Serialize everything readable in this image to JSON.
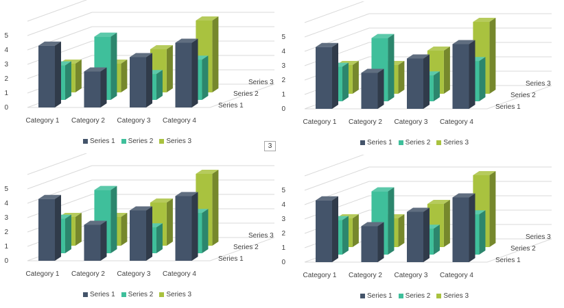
{
  "chart_data": [
    {
      "type": "bar",
      "title": "",
      "xlabel": "",
      "ylabel": "",
      "ylim": [
        0,
        5
      ],
      "yticks": [
        "0",
        "1",
        "2",
        "3",
        "4",
        "5"
      ],
      "categories": [
        "Category 1",
        "Category 2",
        "Category 3",
        "Category 4"
      ],
      "series": [
        {
          "name": "Series 1",
          "values": [
            4.3,
            2.5,
            3.5,
            4.5
          ],
          "color": "#44546a"
        },
        {
          "name": "Series 2",
          "values": [
            2.4,
            4.4,
            1.8,
            2.8
          ],
          "color": "#3fbf9b"
        },
        {
          "name": "Series 3",
          "values": [
            2,
            2,
            3,
            5
          ],
          "color": "#a9c23f"
        }
      ],
      "grid": true,
      "legend": "bottom"
    },
    {
      "type": "bar",
      "title": "",
      "xlabel": "",
      "ylabel": "",
      "ylim": [
        0,
        5
      ],
      "yticks": [
        "0",
        "1",
        "2",
        "3",
        "4",
        "5"
      ],
      "categories": [
        "Category 1",
        "Category 2",
        "Category 3",
        "Category 4"
      ],
      "series": [
        {
          "name": "Series 1",
          "values": [
            4.3,
            2.5,
            3.5,
            4.5
          ],
          "color": "#44546a"
        },
        {
          "name": "Series 2",
          "values": [
            2.4,
            4.4,
            1.8,
            2.8
          ],
          "color": "#3fbf9b"
        },
        {
          "name": "Series 3",
          "values": [
            2,
            2,
            3,
            5
          ],
          "color": "#a9c23f"
        }
      ],
      "grid": true,
      "legend": "bottom"
    },
    {
      "type": "bar",
      "title": "",
      "xlabel": "",
      "ylabel": "",
      "ylim": [
        0,
        5
      ],
      "yticks": [
        "0",
        "1",
        "2",
        "3",
        "4",
        "5"
      ],
      "categories": [
        "Category 1",
        "Category 2",
        "Category 3",
        "Category 4"
      ],
      "series": [
        {
          "name": "Series 1",
          "values": [
            4.3,
            2.5,
            3.5,
            4.5
          ],
          "color": "#44546a"
        },
        {
          "name": "Series 2",
          "values": [
            2.4,
            4.4,
            1.8,
            2.8
          ],
          "color": "#3fbf9b"
        },
        {
          "name": "Series 3",
          "values": [
            2,
            2,
            3,
            5
          ],
          "color": "#a9c23f"
        }
      ],
      "grid": true,
      "legend": "bottom"
    },
    {
      "type": "bar",
      "title": "",
      "xlabel": "",
      "ylabel": "",
      "ylim": [
        0,
        5
      ],
      "yticks": [
        "0",
        "1",
        "2",
        "3",
        "4",
        "5"
      ],
      "categories": [
        "Category 1",
        "Category 2",
        "Category 3",
        "Category 4"
      ],
      "series": [
        {
          "name": "Series 1",
          "values": [
            4.3,
            2.5,
            3.5,
            4.5
          ],
          "color": "#44546a"
        },
        {
          "name": "Series 2",
          "values": [
            2.4,
            4.4,
            1.8,
            2.8
          ],
          "color": "#3fbf9b"
        },
        {
          "name": "Series 3",
          "values": [
            2,
            2,
            3,
            5
          ],
          "color": "#a9c23f"
        }
      ],
      "grid": true,
      "legend": "bottom"
    }
  ],
  "page_indicator": "3"
}
